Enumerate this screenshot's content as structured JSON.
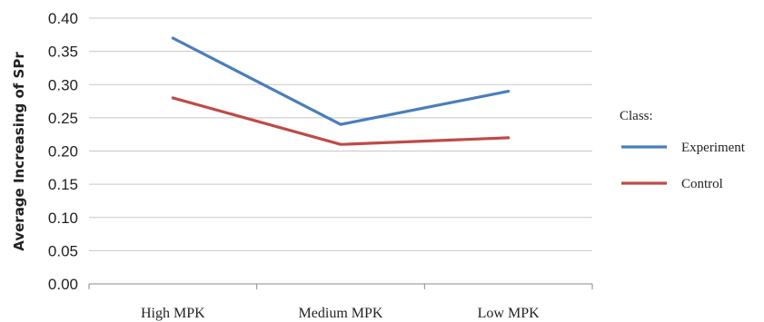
{
  "chart_data": {
    "type": "line",
    "ylabel": "Average Increasing of SPr",
    "xlabel": "",
    "categories": [
      "High MPK",
      "Medium MPK",
      "Low MPK"
    ],
    "ylim": [
      0,
      0.4
    ],
    "ytick_labels": [
      "0.00",
      "0.05",
      "0.10",
      "0.15",
      "0.20",
      "0.25",
      "0.30",
      "0.35",
      "0.40"
    ],
    "grid": true,
    "legend": {
      "title": "Class:",
      "placement": "right"
    },
    "series": [
      {
        "name": "Experiment",
        "values": [
          0.37,
          0.24,
          0.29
        ],
        "color": "#4a7ebb"
      },
      {
        "name": "Control",
        "values": [
          0.28,
          0.21,
          0.22
        ],
        "color": "#be4b48"
      }
    ]
  }
}
